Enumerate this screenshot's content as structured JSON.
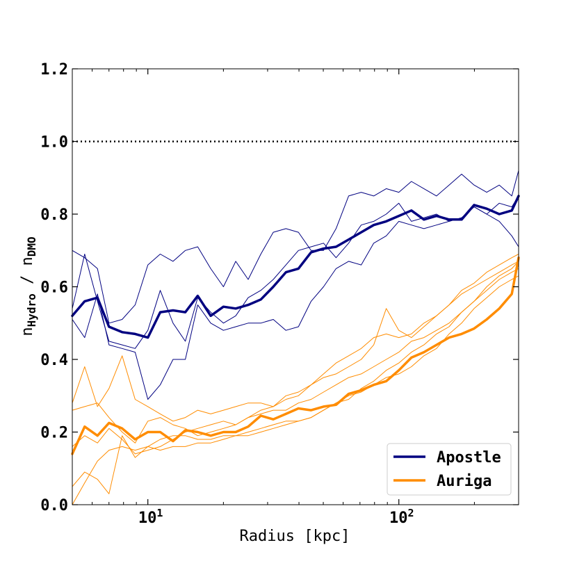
{
  "chart_data": {
    "type": "line",
    "title": "",
    "xlabel": "Radius [kpc]",
    "ylabel": {
      "base": "n",
      "num_sub": "Hydro",
      "sep": " / ",
      "den_base": "n",
      "den_sub": "DMO"
    },
    "xscale": "log",
    "xlim": [
      5,
      300
    ],
    "ylim": [
      0.0,
      1.2
    ],
    "yticks": [
      0.0,
      0.2,
      0.4,
      0.6,
      0.8,
      1.0,
      1.2
    ],
    "ytick_labels": [
      "0.0",
      "0.2",
      "0.4",
      "0.6",
      "0.8",
      "1.0",
      "1.2"
    ],
    "xticks": [
      {
        "value": 10,
        "base": "10",
        "exp": "1"
      },
      {
        "value": 100,
        "base": "10",
        "exp": "2"
      }
    ],
    "reference_line": {
      "y": 1.0,
      "style": "dotted",
      "color": "#000000"
    },
    "legend": {
      "position": "lower-right",
      "entries": [
        {
          "label": "Apostle",
          "color": "#000080"
        },
        {
          "label": "Auriga",
          "color": "#ff8c00"
        }
      ]
    },
    "x": [
      5.0,
      5.6,
      6.3,
      7.0,
      7.9,
      8.9,
      10.0,
      11.2,
      12.6,
      14.1,
      15.8,
      17.8,
      20.0,
      22.4,
      25.1,
      28.2,
      31.6,
      35.5,
      39.8,
      44.7,
      50.1,
      56.2,
      63.1,
      70.8,
      79.4,
      89.1,
      100.0,
      112.2,
      125.9,
      141.3,
      158.5,
      177.8,
      199.5,
      223.9,
      251.2,
      281.8,
      300.0
    ],
    "series": [
      {
        "name": "Apostle median",
        "group": "Apostle",
        "color": "#000080",
        "width": 3.5,
        "values": [
          0.52,
          0.56,
          0.57,
          0.49,
          0.475,
          0.47,
          0.46,
          0.53,
          0.535,
          0.53,
          0.575,
          0.52,
          0.545,
          0.54,
          0.55,
          0.565,
          0.6,
          0.64,
          0.65,
          0.695,
          0.705,
          0.71,
          0.73,
          0.75,
          0.77,
          0.78,
          0.795,
          0.81,
          0.785,
          0.795,
          0.785,
          0.785,
          0.825,
          0.815,
          0.8,
          0.81,
          0.85
        ]
      },
      {
        "name": "Apostle halo 1",
        "group": "Apostle",
        "color": "#000080",
        "width": 1,
        "values": [
          0.7,
          0.68,
          0.65,
          0.5,
          0.51,
          0.55,
          0.66,
          0.69,
          0.67,
          0.7,
          0.71,
          0.65,
          0.6,
          0.67,
          0.62,
          0.69,
          0.75,
          0.76,
          0.75,
          0.7,
          0.7,
          0.76,
          0.85,
          0.86,
          0.85,
          0.87,
          0.86,
          0.89,
          0.87,
          0.85,
          0.88,
          0.91,
          0.88,
          0.86,
          0.88,
          0.85,
          0.92
        ]
      },
      {
        "name": "Apostle halo 2",
        "group": "Apostle",
        "color": "#000080",
        "width": 1,
        "values": [
          0.54,
          0.69,
          0.56,
          0.45,
          0.44,
          0.43,
          0.48,
          0.59,
          0.5,
          0.45,
          0.57,
          0.53,
          0.5,
          0.52,
          0.57,
          0.59,
          0.62,
          0.66,
          0.7,
          0.71,
          0.72,
          0.68,
          0.72,
          0.77,
          0.78,
          0.8,
          0.83,
          0.78,
          0.79,
          0.8,
          0.78,
          0.79,
          0.82,
          0.8,
          0.78,
          0.74,
          0.71
        ]
      },
      {
        "name": "Apostle halo 3",
        "group": "Apostle",
        "color": "#000080",
        "width": 1,
        "values": [
          0.51,
          0.46,
          0.58,
          0.44,
          0.43,
          0.42,
          0.29,
          0.33,
          0.4,
          0.4,
          0.55,
          0.5,
          0.48,
          0.49,
          0.5,
          0.5,
          0.51,
          0.48,
          0.49,
          0.56,
          0.6,
          0.65,
          0.67,
          0.66,
          0.72,
          0.74,
          0.78,
          0.77,
          0.76,
          0.77,
          0.78,
          0.79,
          0.82,
          0.8,
          0.83,
          0.82,
          0.85
        ]
      },
      {
        "name": "Auriga median",
        "group": "Auriga",
        "color": "#ff8c00",
        "width": 3.5,
        "values": [
          0.14,
          0.215,
          0.19,
          0.225,
          0.21,
          0.18,
          0.2,
          0.2,
          0.175,
          0.205,
          0.2,
          0.19,
          0.2,
          0.2,
          0.215,
          0.245,
          0.235,
          0.25,
          0.265,
          0.26,
          0.27,
          0.275,
          0.305,
          0.315,
          0.33,
          0.34,
          0.37,
          0.405,
          0.42,
          0.44,
          0.46,
          0.47,
          0.485,
          0.51,
          0.54,
          0.58,
          0.68
        ]
      },
      {
        "name": "Auriga halo 1",
        "group": "Auriga",
        "color": "#ff8c00",
        "width": 1,
        "values": [
          0.28,
          0.38,
          0.27,
          0.32,
          0.41,
          0.29,
          0.27,
          0.25,
          0.23,
          0.24,
          0.26,
          0.25,
          0.26,
          0.27,
          0.28,
          0.28,
          0.27,
          0.3,
          0.31,
          0.33,
          0.35,
          0.36,
          0.38,
          0.4,
          0.44,
          0.54,
          0.48,
          0.46,
          0.49,
          0.52,
          0.55,
          0.59,
          0.61,
          0.64,
          0.66,
          0.68,
          0.69
        ]
      },
      {
        "name": "Auriga halo 2",
        "group": "Auriga",
        "color": "#ff8c00",
        "width": 1,
        "values": [
          0.26,
          0.27,
          0.28,
          0.24,
          0.2,
          0.17,
          0.23,
          0.24,
          0.22,
          0.21,
          0.19,
          0.2,
          0.21,
          0.22,
          0.24,
          0.26,
          0.27,
          0.29,
          0.3,
          0.33,
          0.36,
          0.39,
          0.41,
          0.43,
          0.46,
          0.47,
          0.46,
          0.47,
          0.5,
          0.52,
          0.55,
          0.58,
          0.6,
          0.62,
          0.64,
          0.66,
          0.67
        ]
      },
      {
        "name": "Auriga halo 3",
        "group": "Auriga",
        "color": "#ff8c00",
        "width": 1,
        "values": [
          0.16,
          0.19,
          0.17,
          0.21,
          0.18,
          0.14,
          0.15,
          0.16,
          0.18,
          0.2,
          0.21,
          0.22,
          0.23,
          0.22,
          0.24,
          0.25,
          0.26,
          0.26,
          0.28,
          0.29,
          0.31,
          0.33,
          0.35,
          0.36,
          0.38,
          0.4,
          0.42,
          0.45,
          0.46,
          0.48,
          0.5,
          0.53,
          0.56,
          0.59,
          0.62,
          0.64,
          0.65
        ]
      },
      {
        "name": "Auriga halo 4",
        "group": "Auriga",
        "color": "#ff8c00",
        "width": 1,
        "values": [
          0.05,
          0.09,
          0.07,
          0.03,
          0.19,
          0.13,
          0.16,
          0.15,
          0.16,
          0.16,
          0.17,
          0.17,
          0.18,
          0.19,
          0.2,
          0.21,
          0.22,
          0.23,
          0.23,
          0.24,
          0.26,
          0.28,
          0.3,
          0.31,
          0.33,
          0.35,
          0.36,
          0.38,
          0.41,
          0.43,
          0.47,
          0.5,
          0.54,
          0.57,
          0.6,
          0.62,
          0.63
        ]
      },
      {
        "name": "Auriga halo 5",
        "group": "Auriga",
        "color": "#ff8c00",
        "width": 1,
        "values": [
          0.0,
          0.06,
          0.12,
          0.15,
          0.16,
          0.15,
          0.16,
          0.18,
          0.19,
          0.19,
          0.18,
          0.18,
          0.19,
          0.19,
          0.19,
          0.2,
          0.21,
          0.22,
          0.23,
          0.24,
          0.26,
          0.28,
          0.29,
          0.32,
          0.34,
          0.37,
          0.39,
          0.42,
          0.44,
          0.47,
          0.49,
          0.53,
          0.56,
          0.6,
          0.63,
          0.65,
          0.67
        ]
      }
    ]
  }
}
